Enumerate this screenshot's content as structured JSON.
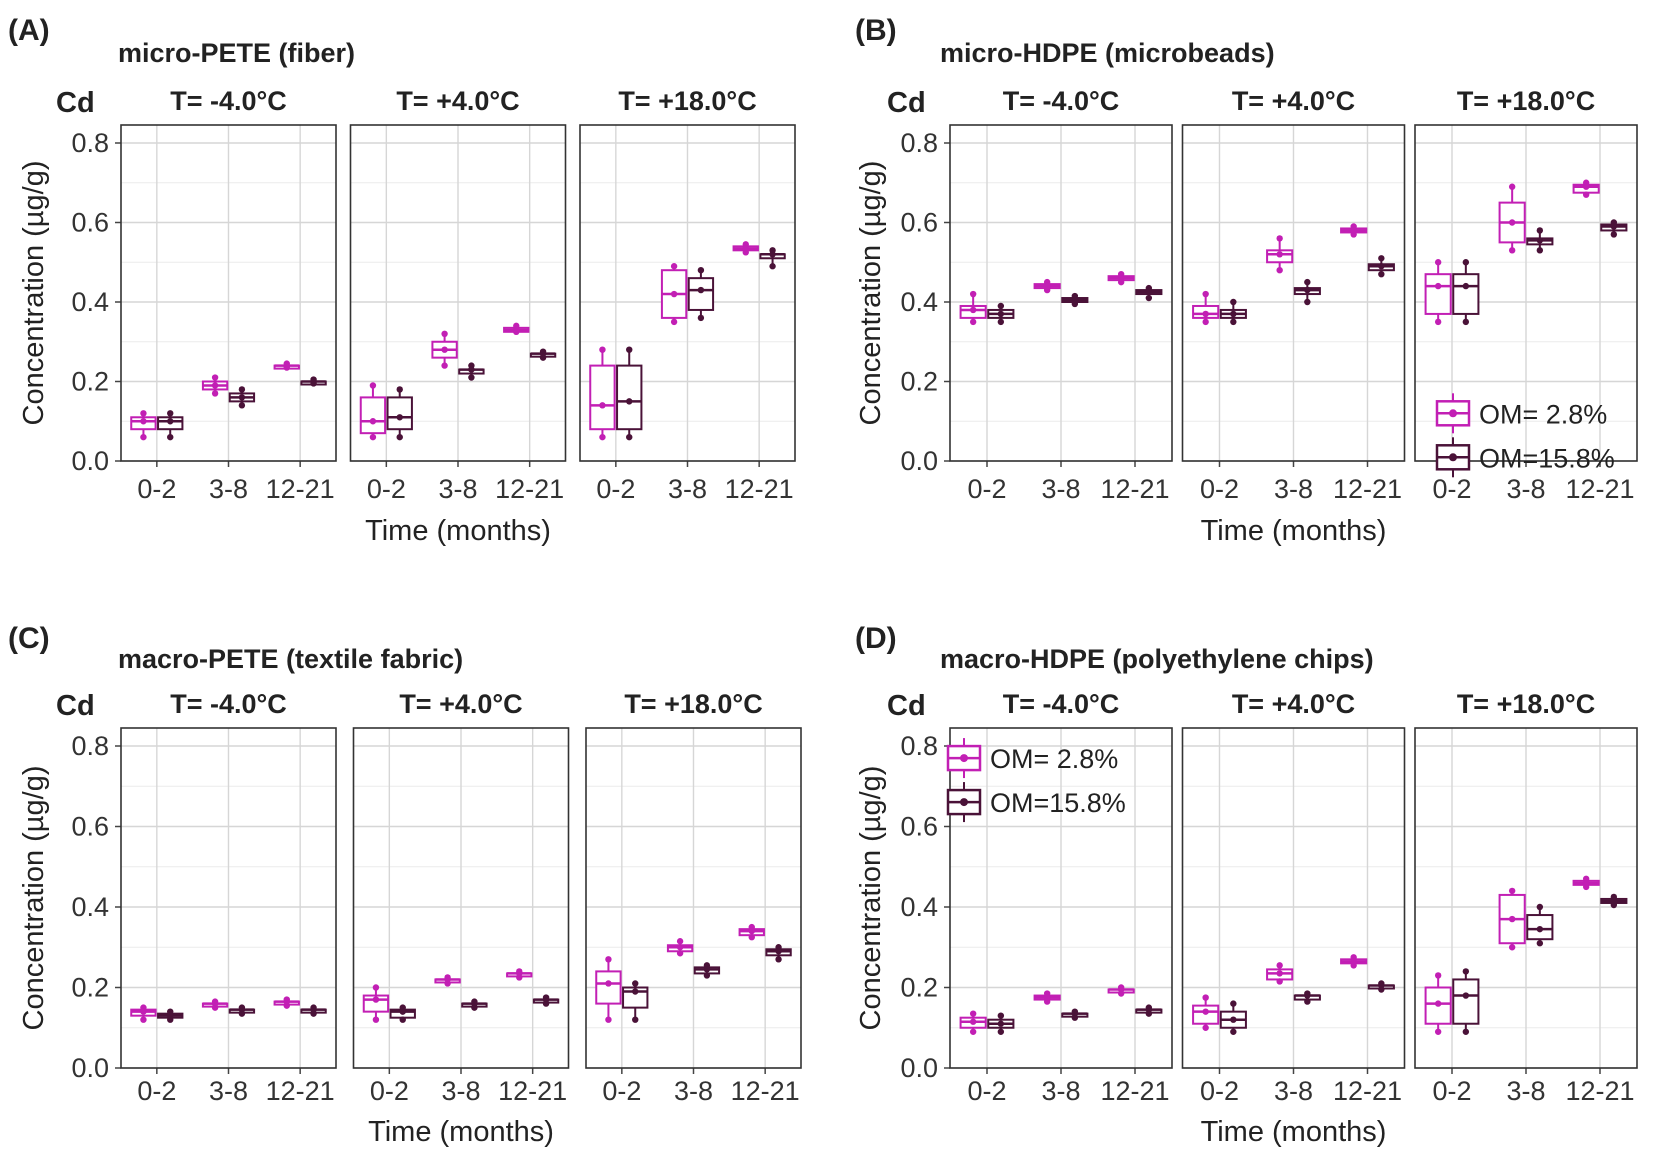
{
  "colors": {
    "om_low": "#c21fb4",
    "om_high": "#4a1238"
  },
  "chart_data": [
    {
      "type": "boxplot",
      "id": "A",
      "panel_label": "(A)",
      "title": "micro-PETE  (fiber)",
      "metal": "Cd",
      "ylabel": "Concentration  (µg/g)",
      "xlabel": "Time (months)",
      "ylim": [
        0,
        0.8
      ],
      "yticks": [
        "0.0",
        "0.2",
        "0.4",
        "0.6",
        "0.8"
      ],
      "categories": [
        "0-2",
        "3-8",
        "12-21"
      ],
      "legend": null,
      "facets": [
        {
          "label": "T= -4.0°C",
          "series": [
            {
              "name": "OM= 2.8%",
              "boxes": [
                [
                  0.06,
                  0.08,
                  0.1,
                  0.11,
                  0.12
                ],
                [
                  0.17,
                  0.18,
                  0.19,
                  0.2,
                  0.21
                ],
                [
                  0.235,
                  0.235,
                  0.24,
                  0.24,
                  0.245
                ]
              ]
            },
            {
              "name": "OM=15.8%",
              "boxes": [
                [
                  0.06,
                  0.08,
                  0.1,
                  0.11,
                  0.12
                ],
                [
                  0.14,
                  0.15,
                  0.16,
                  0.17,
                  0.18
                ],
                [
                  0.195,
                  0.195,
                  0.2,
                  0.2,
                  0.205
                ]
              ]
            }
          ]
        },
        {
          "label": "T= +4.0°C",
          "series": [
            {
              "name": "OM= 2.8%",
              "boxes": [
                [
                  0.06,
                  0.07,
                  0.1,
                  0.16,
                  0.19
                ],
                [
                  0.24,
                  0.26,
                  0.28,
                  0.3,
                  0.32
                ],
                [
                  0.325,
                  0.325,
                  0.33,
                  0.335,
                  0.34
                ]
              ]
            },
            {
              "name": "OM=15.8%",
              "boxes": [
                [
                  0.06,
                  0.08,
                  0.11,
                  0.16,
                  0.18
                ],
                [
                  0.21,
                  0.22,
                  0.23,
                  0.23,
                  0.24
                ],
                [
                  0.26,
                  0.265,
                  0.27,
                  0.27,
                  0.275
                ]
              ]
            }
          ]
        },
        {
          "label": "T= +18.0°C",
          "series": [
            {
              "name": "OM= 2.8%",
              "boxes": [
                [
                  0.06,
                  0.08,
                  0.14,
                  0.24,
                  0.28
                ],
                [
                  0.35,
                  0.36,
                  0.42,
                  0.48,
                  0.49
                ],
                [
                  0.525,
                  0.53,
                  0.535,
                  0.54,
                  0.545
                ]
              ]
            },
            {
              "name": "OM=15.8%",
              "boxes": [
                [
                  0.06,
                  0.08,
                  0.15,
                  0.24,
                  0.28
                ],
                [
                  0.36,
                  0.38,
                  0.43,
                  0.46,
                  0.48
                ],
                [
                  0.49,
                  0.51,
                  0.52,
                  0.52,
                  0.53
                ]
              ]
            }
          ]
        }
      ]
    },
    {
      "type": "boxplot",
      "id": "B",
      "panel_label": "(B)",
      "title": "micro-HDPE  (microbeads)",
      "metal": "Cd",
      "ylabel": "Concentration  (µg/g)",
      "xlabel": "Time (months)",
      "ylim": [
        0,
        0.8
      ],
      "yticks": [
        "0.0",
        "0.2",
        "0.4",
        "0.6",
        "0.8"
      ],
      "categories": [
        "0-2",
        "3-8",
        "12-21"
      ],
      "legend": {
        "position": "bottom-right",
        "entries": [
          "OM=  2.8%",
          "OM=15.8%"
        ]
      },
      "facets": [
        {
          "label": "T= -4.0°C",
          "series": [
            {
              "name": "OM= 2.8%",
              "boxes": [
                [
                  0.35,
                  0.36,
                  0.38,
                  0.39,
                  0.42
                ],
                [
                  0.43,
                  0.435,
                  0.44,
                  0.445,
                  0.45
                ],
                [
                  0.45,
                  0.455,
                  0.46,
                  0.465,
                  0.47
                ]
              ]
            },
            {
              "name": "OM=15.8%",
              "boxes": [
                [
                  0.35,
                  0.36,
                  0.37,
                  0.38,
                  0.39
                ],
                [
                  0.395,
                  0.4,
                  0.405,
                  0.41,
                  0.415
                ],
                [
                  0.41,
                  0.42,
                  0.425,
                  0.43,
                  0.435
                ]
              ]
            }
          ]
        },
        {
          "label": "T= +4.0°C",
          "series": [
            {
              "name": "OM= 2.8%",
              "boxes": [
                [
                  0.35,
                  0.36,
                  0.37,
                  0.39,
                  0.42
                ],
                [
                  0.48,
                  0.5,
                  0.52,
                  0.53,
                  0.56
                ],
                [
                  0.57,
                  0.575,
                  0.58,
                  0.585,
                  0.59
                ]
              ]
            },
            {
              "name": "OM=15.8%",
              "boxes": [
                [
                  0.35,
                  0.36,
                  0.37,
                  0.38,
                  0.4
                ],
                [
                  0.4,
                  0.42,
                  0.43,
                  0.435,
                  0.45
                ],
                [
                  0.47,
                  0.48,
                  0.49,
                  0.495,
                  0.51
                ]
              ]
            }
          ]
        },
        {
          "label": "T= +18.0°C",
          "series": [
            {
              "name": "OM= 2.8%",
              "boxes": [
                [
                  0.35,
                  0.37,
                  0.44,
                  0.47,
                  0.5
                ],
                [
                  0.53,
                  0.55,
                  0.6,
                  0.65,
                  0.69
                ],
                [
                  0.67,
                  0.675,
                  0.69,
                  0.695,
                  0.7
                ]
              ]
            },
            {
              "name": "OM=15.8%",
              "boxes": [
                [
                  0.35,
                  0.37,
                  0.44,
                  0.47,
                  0.5
                ],
                [
                  0.53,
                  0.545,
                  0.555,
                  0.56,
                  0.58
                ],
                [
                  0.57,
                  0.58,
                  0.59,
                  0.595,
                  0.6
                ]
              ]
            }
          ]
        }
      ]
    },
    {
      "type": "boxplot",
      "id": "C",
      "panel_label": "(C)",
      "title": "macro-PETE  (textile fabric)",
      "metal": "Cd",
      "ylabel": "Concentration  (µg/g)",
      "xlabel": "Time (months)",
      "ylim": [
        0,
        0.8
      ],
      "yticks": [
        "0.0",
        "0.2",
        "0.4",
        "0.6",
        "0.8"
      ],
      "categories": [
        "0-2",
        "3-8",
        "12-21"
      ],
      "legend": null,
      "facets": [
        {
          "label": "T= -4.0°C",
          "series": [
            {
              "name": "OM= 2.8%",
              "boxes": [
                [
                  0.12,
                  0.13,
                  0.14,
                  0.145,
                  0.15
                ],
                [
                  0.15,
                  0.155,
                  0.16,
                  0.16,
                  0.165
                ],
                [
                  0.155,
                  0.16,
                  0.165,
                  0.165,
                  0.17
                ]
              ]
            },
            {
              "name": "OM=15.8%",
              "boxes": [
                [
                  0.12,
                  0.125,
                  0.13,
                  0.135,
                  0.14
                ],
                [
                  0.135,
                  0.14,
                  0.145,
                  0.145,
                  0.15
                ],
                [
                  0.135,
                  0.14,
                  0.145,
                  0.145,
                  0.15
                ]
              ]
            }
          ]
        },
        {
          "label": "T= +4.0°C",
          "series": [
            {
              "name": "OM= 2.8%",
              "boxes": [
                [
                  0.12,
                  0.14,
                  0.17,
                  0.18,
                  0.2
                ],
                [
                  0.21,
                  0.215,
                  0.22,
                  0.22,
                  0.225
                ],
                [
                  0.225,
                  0.23,
                  0.235,
                  0.235,
                  0.24
                ]
              ]
            },
            {
              "name": "OM=15.8%",
              "boxes": [
                [
                  0.12,
                  0.125,
                  0.14,
                  0.145,
                  0.15
                ],
                [
                  0.15,
                  0.155,
                  0.16,
                  0.16,
                  0.165
                ],
                [
                  0.16,
                  0.165,
                  0.17,
                  0.17,
                  0.175
                ]
              ]
            }
          ]
        },
        {
          "label": "T= +18.0°C",
          "series": [
            {
              "name": "OM= 2.8%",
              "boxes": [
                [
                  0.12,
                  0.16,
                  0.21,
                  0.24,
                  0.27
                ],
                [
                  0.285,
                  0.29,
                  0.3,
                  0.305,
                  0.315
                ],
                [
                  0.325,
                  0.33,
                  0.34,
                  0.345,
                  0.35
                ]
              ]
            },
            {
              "name": "OM=15.8%",
              "boxes": [
                [
                  0.12,
                  0.15,
                  0.19,
                  0.2,
                  0.21
                ],
                [
                  0.23,
                  0.235,
                  0.245,
                  0.25,
                  0.255
                ],
                [
                  0.27,
                  0.28,
                  0.29,
                  0.295,
                  0.3
                ]
              ]
            }
          ]
        }
      ]
    },
    {
      "type": "boxplot",
      "id": "D",
      "panel_label": "(D)",
      "title": "macro-HDPE  (polyethylene chips)",
      "metal": "Cd",
      "ylabel": "Concentration  (µg/g)",
      "xlabel": "Time (months)",
      "ylim": [
        0,
        0.8
      ],
      "yticks": [
        "0.0",
        "0.2",
        "0.4",
        "0.6",
        "0.8"
      ],
      "categories": [
        "0-2",
        "3-8",
        "12-21"
      ],
      "legend": {
        "position": "top-left",
        "entries": [
          "OM=  2.8%",
          "OM=15.8%"
        ]
      },
      "facets": [
        {
          "label": "T= -4.0°C",
          "series": [
            {
              "name": "OM= 2.8%",
              "boxes": [
                [
                  0.09,
                  0.1,
                  0.115,
                  0.125,
                  0.135
                ],
                [
                  0.165,
                  0.17,
                  0.175,
                  0.18,
                  0.185
                ],
                [
                  0.185,
                  0.19,
                  0.195,
                  0.195,
                  0.2
                ]
              ]
            },
            {
              "name": "OM=15.8%",
              "boxes": [
                [
                  0.09,
                  0.1,
                  0.11,
                  0.12,
                  0.13
                ],
                [
                  0.125,
                  0.13,
                  0.135,
                  0.135,
                  0.14
                ],
                [
                  0.135,
                  0.14,
                  0.145,
                  0.145,
                  0.15
                ]
              ]
            }
          ]
        },
        {
          "label": "T= +4.0°C",
          "series": [
            {
              "name": "OM= 2.8%",
              "boxes": [
                [
                  0.1,
                  0.11,
                  0.14,
                  0.155,
                  0.175
                ],
                [
                  0.215,
                  0.22,
                  0.235,
                  0.245,
                  0.255
                ],
                [
                  0.255,
                  0.26,
                  0.265,
                  0.27,
                  0.275
                ]
              ]
            },
            {
              "name": "OM=15.8%",
              "boxes": [
                [
                  0.09,
                  0.1,
                  0.12,
                  0.14,
                  0.16
                ],
                [
                  0.165,
                  0.17,
                  0.18,
                  0.18,
                  0.185
                ],
                [
                  0.195,
                  0.2,
                  0.205,
                  0.205,
                  0.21
                ]
              ]
            }
          ]
        },
        {
          "label": "T= +18.0°C",
          "series": [
            {
              "name": "OM= 2.8%",
              "boxes": [
                [
                  0.09,
                  0.11,
                  0.16,
                  0.2,
                  0.23
                ],
                [
                  0.3,
                  0.31,
                  0.37,
                  0.43,
                  0.44
                ],
                [
                  0.45,
                  0.455,
                  0.46,
                  0.465,
                  0.47
                ]
              ]
            },
            {
              "name": "OM=15.8%",
              "boxes": [
                [
                  0.09,
                  0.11,
                  0.18,
                  0.22,
                  0.24
                ],
                [
                  0.31,
                  0.32,
                  0.345,
                  0.38,
                  0.4
                ],
                [
                  0.405,
                  0.41,
                  0.415,
                  0.42,
                  0.425
                ]
              ]
            }
          ]
        }
      ]
    }
  ]
}
